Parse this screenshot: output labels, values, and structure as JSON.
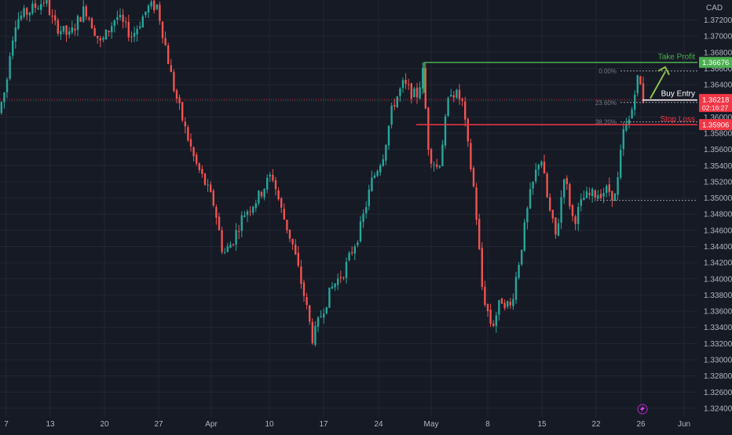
{
  "chart_data": {
    "type": "candlestick",
    "currency": "CAD",
    "x_ticks": [
      "7",
      "13",
      "20",
      "27",
      "Apr",
      "10",
      "17",
      "24",
      "May",
      "8",
      "15",
      "22",
      "26",
      "Jun"
    ],
    "y_ticks": [
      "1.37200",
      "1.37000",
      "1.36800",
      "1.36600",
      "1.36400",
      "1.36200",
      "1.36000",
      "1.35800",
      "1.35600",
      "1.35400",
      "1.35200",
      "1.35000",
      "1.34800",
      "1.34600",
      "1.34400",
      "1.34200",
      "1.34000",
      "1.33800",
      "1.33600",
      "1.33400",
      "1.33200",
      "1.33000",
      "1.32800",
      "1.32600",
      "1.32400"
    ],
    "y_range": [
      1.3238,
      1.3735
    ],
    "fib_levels": [
      {
        "label": "0.00%",
        "price": 1.3657
      },
      {
        "label": "23.60%",
        "price": 1.3618
      },
      {
        "label": "38.20%",
        "price": 1.3594
      }
    ],
    "fib_base_price": 1.3497,
    "levels": {
      "take_profit": {
        "label": "Take Profit",
        "price": 1.36676,
        "tag": "1.36676",
        "color": "#4caf50"
      },
      "buy_entry": {
        "label": "Buy Entry",
        "price": 1.3621,
        "color": "#ffffff"
      },
      "stop_loss": {
        "label": "Stop Loss",
        "price": 1.35906,
        "tag": "1.35906",
        "color": "#f23645"
      },
      "current": {
        "price": 1.36218,
        "tag": "1.36218",
        "countdown": "02:16:27",
        "color": "#f23645"
      }
    },
    "colors": {
      "up": "#26a69a",
      "down": "#ef5350",
      "background": "#161a25"
    }
  }
}
